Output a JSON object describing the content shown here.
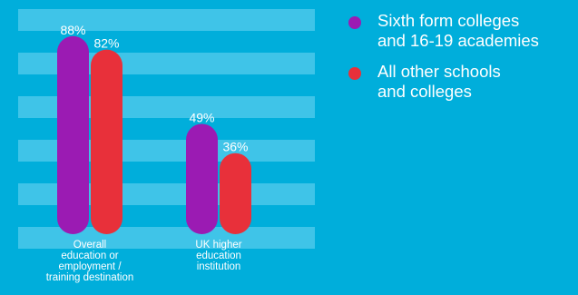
{
  "chart_data": {
    "type": "bar",
    "categories": [
      "Overall\neducation or\nemployment /\ntraining destination",
      "UK higher\neducation\ninstitution"
    ],
    "series": [
      {
        "name": "Sixth form colleges\nand 16-19 academies",
        "values": [
          88,
          49
        ],
        "color": "#9b1bb3"
      },
      {
        "name": "All other schools\nand colleges",
        "values": [
          82,
          36
        ],
        "color": "#e8303a"
      }
    ],
    "value_labels": [
      [
        "88%",
        "49%"
      ],
      [
        "82%",
        "36%"
      ]
    ],
    "ylim": [
      0,
      100
    ],
    "legend_position": "right",
    "grid": true,
    "colors": {
      "background": "#00aedb",
      "band": "#3fc4e8"
    }
  }
}
